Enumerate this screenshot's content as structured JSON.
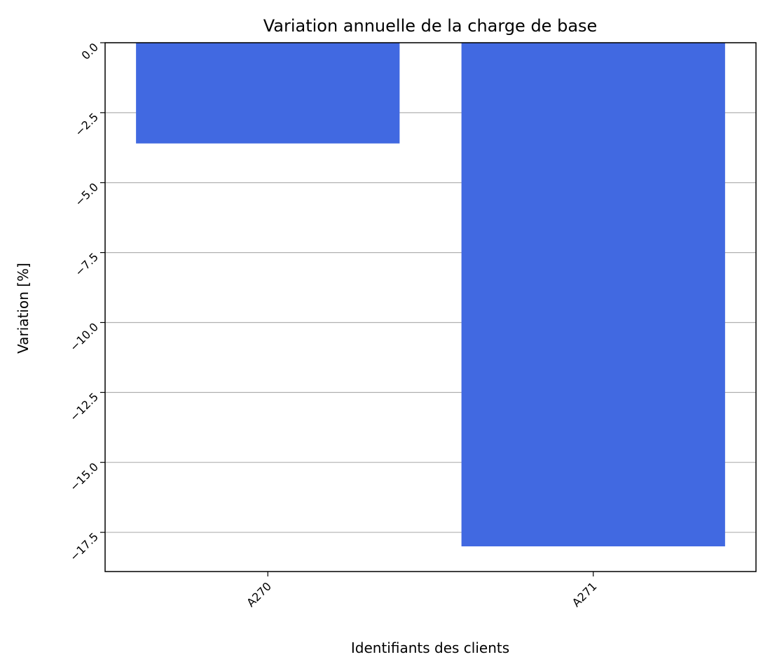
{
  "chart_data": {
    "type": "bar",
    "title": "Variation annuelle de la charge de base",
    "xlabel": "Identifiants des clients",
    "ylabel": "Variation [%]",
    "categories": [
      "A270",
      "A271"
    ],
    "values": [
      -3.6,
      -18.0
    ],
    "ylim": [
      -18.9,
      0.0
    ],
    "yticks": [
      0.0,
      -2.5,
      -5.0,
      -7.5,
      -10.0,
      -12.5,
      -15.0,
      -17.5
    ],
    "ytick_labels": [
      "0.0",
      "−2.5",
      "−5.0",
      "−7.5",
      "−10.0",
      "−12.5",
      "−15.0",
      "−17.5"
    ],
    "grid": "horizontal",
    "bar_color": "#4169e1",
    "tick_rotation_deg": 45
  }
}
